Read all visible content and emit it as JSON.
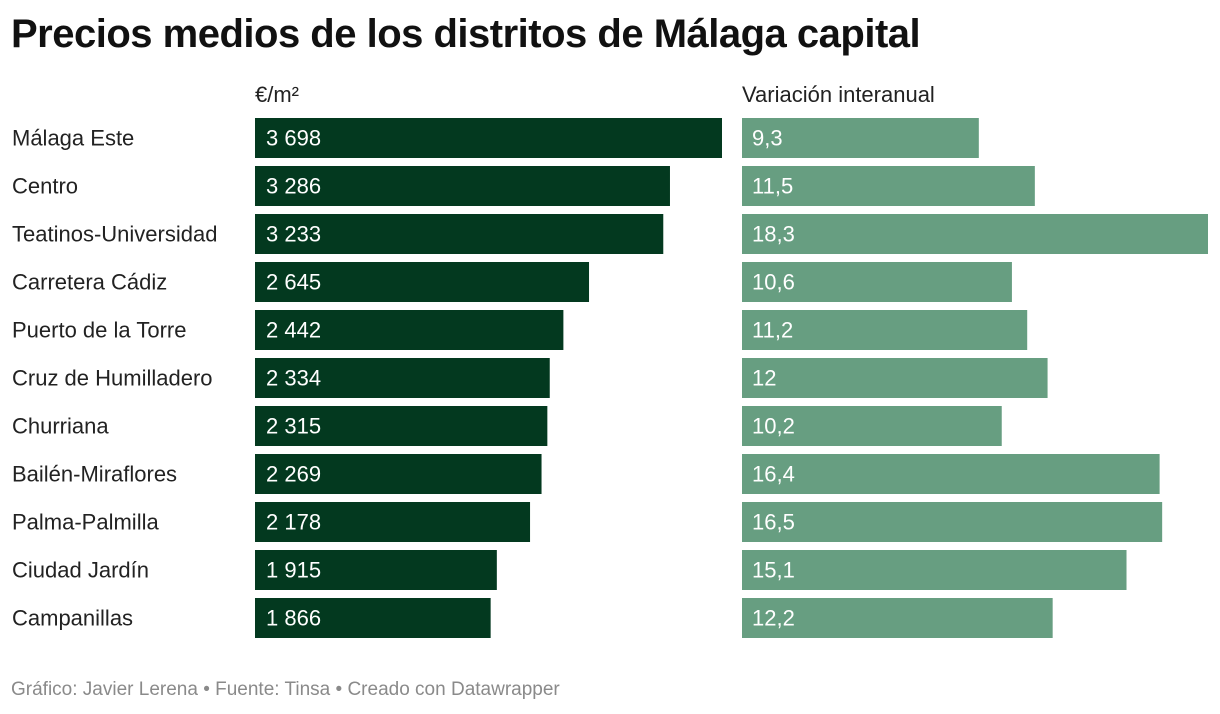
{
  "title": "Precios medios de los distritos de Málaga capital",
  "footer": "Gráfico: Javier Lerena • Fuente: Tinsa • Creado con Datawrapper",
  "colors": {
    "price_bar": "#03391f",
    "variation_bar": "#679e81",
    "bar_label": "#ffffff",
    "row_label": "#222222"
  },
  "chart_data": {
    "type": "bar",
    "orientation": "horizontal",
    "categories": [
      "Málaga Este",
      "Centro",
      "Teatinos-Universidad",
      "Carretera Cádiz",
      "Puerto de la Torre",
      "Cruz de Humilladero",
      "Churriana",
      "Bailén-Miraflores",
      "Palma-Palmilla",
      "Ciudad Jardín",
      "Campanillas"
    ],
    "series": [
      {
        "name": "€/m²",
        "values": [
          3698,
          3286,
          3233,
          2645,
          2442,
          2334,
          2315,
          2269,
          2178,
          1915,
          1866
        ],
        "labels": [
          "3 698",
          "3 286",
          "3 233",
          "2 645",
          "2 442",
          "2 334",
          "2 315",
          "2 269",
          "2 178",
          "1 915",
          "1 866"
        ]
      },
      {
        "name": "Variación interanual",
        "values": [
          9.3,
          11.5,
          18.3,
          10.6,
          11.2,
          12,
          10.2,
          16.4,
          16.5,
          15.1,
          12.2
        ],
        "labels": [
          "9,3",
          "11,5",
          "18,3",
          "10,6",
          "11,2",
          "12",
          "10,2",
          "16,4",
          "16,5",
          "15,1",
          "12,2"
        ]
      }
    ],
    "grid": false,
    "legend": "none"
  }
}
